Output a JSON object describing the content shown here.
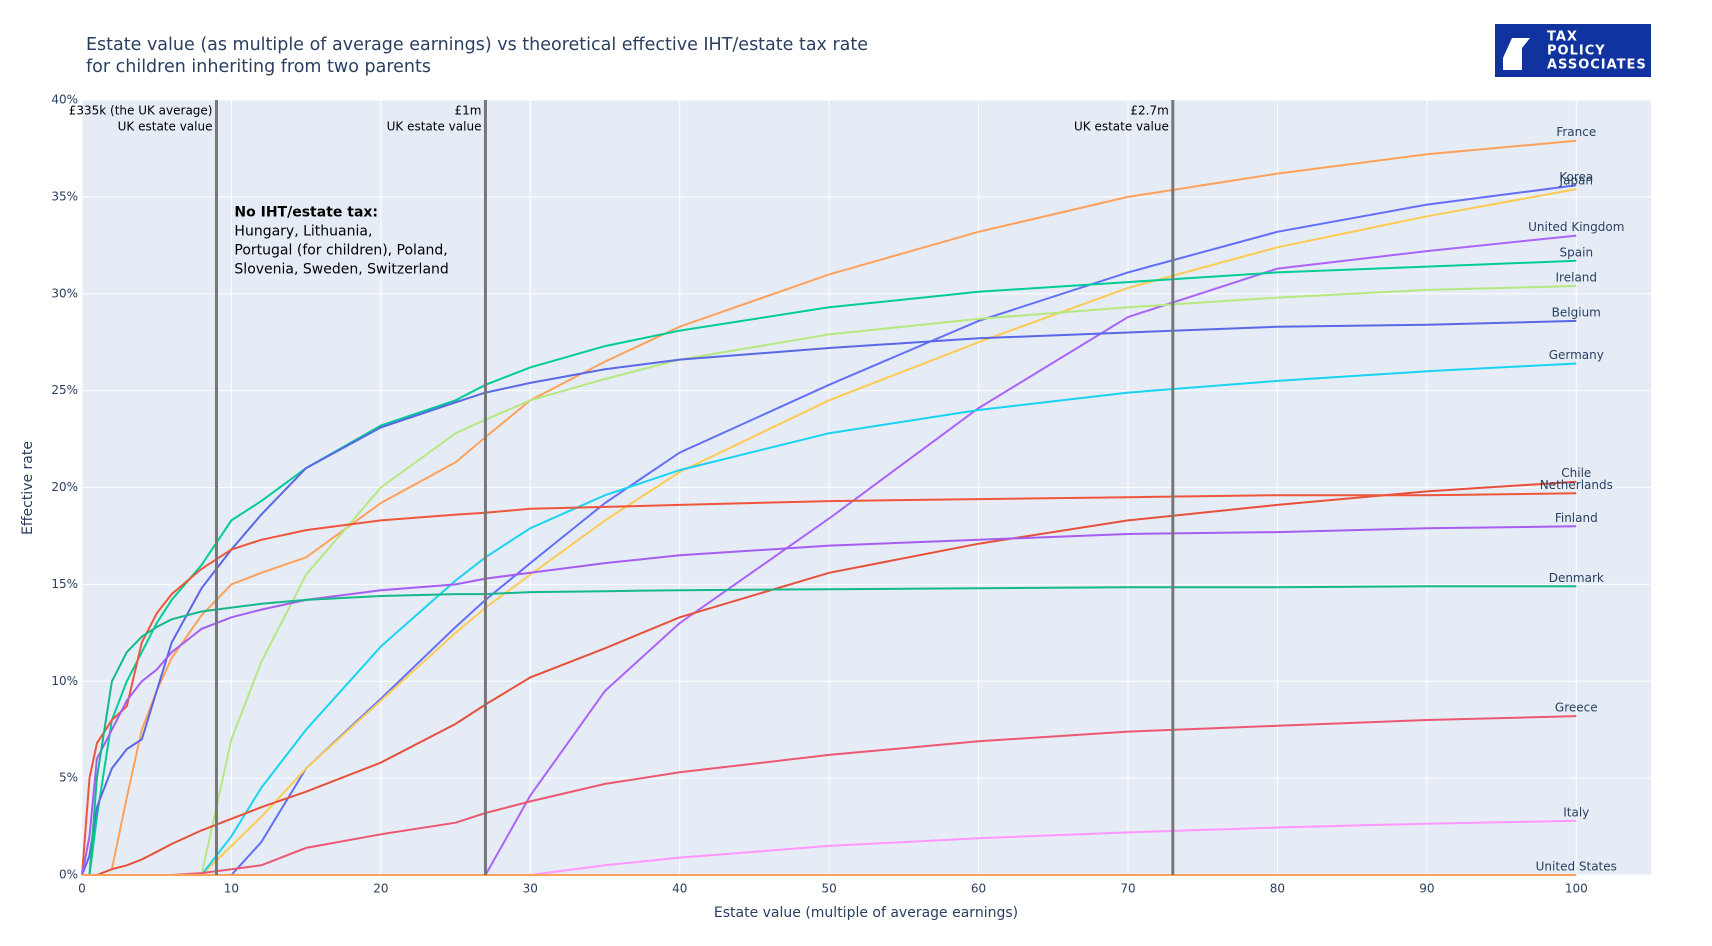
{
  "chart_data": {
    "type": "line",
    "title": [
      "Estate value (as multiple of average earnings) vs theoretical effective IHT/estate tax rate",
      "for children inheriting from two parents"
    ],
    "logo": [
      "TAX",
      "POLICY",
      "ASSOCIATES"
    ],
    "x_label": "Estate value (multiple of average earnings)",
    "y_label": "Effective rate",
    "xlim": [
      0,
      105
    ],
    "ylim": [
      0,
      40
    ],
    "xticks": [
      0,
      10,
      20,
      30,
      40,
      50,
      60,
      70,
      80,
      90,
      100
    ],
    "yticks": [
      {
        "value": 0,
        "label": "0%"
      },
      {
        "value": 5,
        "label": "5%"
      },
      {
        "value": 10,
        "label": "10%"
      },
      {
        "value": 15,
        "label": "15%"
      },
      {
        "value": 20,
        "label": "20%"
      },
      {
        "value": 25,
        "label": "25%"
      },
      {
        "value": 30,
        "label": "30%"
      },
      {
        "value": 35,
        "label": "35%"
      },
      {
        "value": 40,
        "label": "40%"
      }
    ],
    "grid": true,
    "vlines": [
      {
        "x": 9,
        "label": [
          "£335k (the UK average)",
          "UK estate value"
        ]
      },
      {
        "x": 27,
        "label": [
          "£1m",
          "UK estate value"
        ]
      },
      {
        "x": 73,
        "label": [
          "£2.7m",
          "UK estate value"
        ]
      }
    ],
    "note": {
      "heading": "No IHT/estate tax:",
      "lines": [
        "Hungary, Lithuania,",
        "Portugal (for children), Poland,",
        "Slovenia, Sweden, Switzerland"
      ]
    },
    "x": [
      0,
      0.5,
      1,
      2,
      3,
      4,
      5,
      6,
      8,
      10,
      12,
      15,
      20,
      25,
      27,
      30,
      35,
      40,
      50,
      60,
      70,
      80,
      90,
      100
    ],
    "series": [
      {
        "name": "France",
        "color": "#FFA15A",
        "values": [
          0,
          0,
          0,
          0.3,
          4,
          7.5,
          9.5,
          11.2,
          13.4,
          15.0,
          15.6,
          16.4,
          19.2,
          21.3,
          22.6,
          24.5,
          26.5,
          28.3,
          31,
          33.2,
          35,
          36.2,
          37.2,
          37.9
        ]
      },
      {
        "name": "Korea",
        "color": "#636EFA",
        "values": [
          0,
          0,
          0,
          0,
          0,
          0,
          0,
          0,
          0,
          0,
          1.7,
          5.5,
          9.1,
          12.8,
          14.2,
          16.1,
          19.2,
          21.8,
          25.3,
          28.6,
          31.1,
          33.2,
          34.6,
          35.6
        ]
      },
      {
        "name": "Japan",
        "color": "#FECB52",
        "values": [
          0,
          0,
          0,
          0,
          0,
          0,
          0,
          0,
          0,
          1.5,
          3,
          5.5,
          9,
          12.5,
          13.8,
          15.5,
          18.3,
          20.8,
          24.5,
          27.5,
          30.3,
          32.4,
          34.0,
          35.4
        ]
      },
      {
        "name": "United Kingdom",
        "color": "#AB63FA",
        "values": [
          0,
          0,
          0,
          0,
          0,
          0,
          0,
          0,
          0,
          0,
          0,
          0,
          0,
          0,
          0,
          4.1,
          9.5,
          13.0,
          18.4,
          24.1,
          28.8,
          31.3,
          32.2,
          33.0
        ]
      },
      {
        "name": "Spain",
        "color": "#00CC96",
        "values": [
          0,
          0,
          3,
          8,
          10,
          11.5,
          13,
          14.2,
          16,
          18.3,
          19.3,
          21,
          23.2,
          24.5,
          25.3,
          26.2,
          27.3,
          28.1,
          29.3,
          30.1,
          30.6,
          31.1,
          31.4,
          31.7
        ]
      },
      {
        "name": "Ireland",
        "color": "#B6E880",
        "values": [
          0,
          0,
          0,
          0,
          0,
          0,
          0,
          0,
          0,
          7,
          11,
          15.5,
          20,
          22.8,
          23.5,
          24.5,
          25.6,
          26.6,
          27.9,
          28.7,
          29.3,
          29.8,
          30.2,
          30.4
        ]
      },
      {
        "name": "Belgium",
        "color": "#5A67E6",
        "values": [
          0,
          1,
          3.5,
          5.5,
          6.5,
          7,
          9.5,
          12,
          14.8,
          16.8,
          18.6,
          21,
          23.1,
          24.4,
          24.9,
          25.4,
          26.1,
          26.6,
          27.2,
          27.7,
          28.0,
          28.3,
          28.4,
          28.6
        ]
      },
      {
        "name": "Germany",
        "color": "#19D3F3",
        "values": [
          0,
          0,
          0,
          0,
          0,
          0,
          0,
          0,
          0,
          2,
          4.5,
          7.5,
          11.8,
          15.2,
          16.4,
          17.9,
          19.6,
          20.9,
          22.8,
          24.0,
          24.9,
          25.5,
          26.0,
          26.4
        ]
      },
      {
        "name": "Chile",
        "color": "#E8503A",
        "values": [
          0,
          0,
          0,
          0.3,
          0.5,
          0.8,
          1.2,
          1.6,
          2.3,
          2.9,
          3.5,
          4.3,
          5.8,
          7.8,
          8.8,
          10.2,
          11.7,
          13.3,
          15.6,
          17.1,
          18.3,
          19.1,
          19.8,
          20.3
        ]
      },
      {
        "name": "Netherlands",
        "color": "#EF553B",
        "values": [
          0,
          5,
          6.8,
          8,
          8.7,
          12,
          13.5,
          14.5,
          15.8,
          16.8,
          17.3,
          17.8,
          18.3,
          18.6,
          18.7,
          18.9,
          19.0,
          19.1,
          19.3,
          19.4,
          19.5,
          19.6,
          19.6,
          19.7
        ]
      },
      {
        "name": "Finland",
        "color": "#A65DF0",
        "values": [
          0,
          2,
          6,
          7.5,
          9,
          10,
          10.6,
          11.5,
          12.7,
          13.3,
          13.7,
          14.2,
          14.7,
          15.0,
          15.3,
          15.6,
          16.1,
          16.5,
          17.0,
          17.3,
          17.6,
          17.7,
          17.9,
          18.0
        ]
      },
      {
        "name": "Denmark",
        "color": "#16B88A",
        "values": [
          0,
          0,
          5,
          10,
          11.5,
          12.3,
          12.8,
          13.2,
          13.6,
          13.8,
          14,
          14.2,
          14.4,
          14.5,
          14.5,
          14.6,
          14.65,
          14.7,
          14.75,
          14.8,
          14.85,
          14.85,
          14.9,
          14.9
        ]
      },
      {
        "name": "Greece",
        "color": "#EC5870",
        "values": [
          0,
          0,
          0,
          0,
          0,
          0,
          0,
          0,
          0.1,
          0.3,
          0.5,
          1.4,
          2.1,
          2.7,
          3.2,
          3.8,
          4.7,
          5.3,
          6.2,
          6.9,
          7.4,
          7.7,
          8.0,
          8.2
        ]
      },
      {
        "name": "Italy",
        "color": "#FF97FF",
        "values": [
          0,
          0,
          0,
          0,
          0,
          0,
          0,
          0,
          0,
          0,
          0,
          0,
          0,
          0,
          0,
          0,
          0.5,
          0.9,
          1.5,
          1.9,
          2.2,
          2.45,
          2.65,
          2.8
        ]
      },
      {
        "name": "United States",
        "color": "#FFA15A",
        "values": [
          0,
          0,
          0,
          0,
          0,
          0,
          0,
          0,
          0,
          0,
          0,
          0,
          0,
          0,
          0,
          0,
          0,
          0,
          0,
          0,
          0,
          0,
          0,
          0
        ]
      }
    ]
  }
}
